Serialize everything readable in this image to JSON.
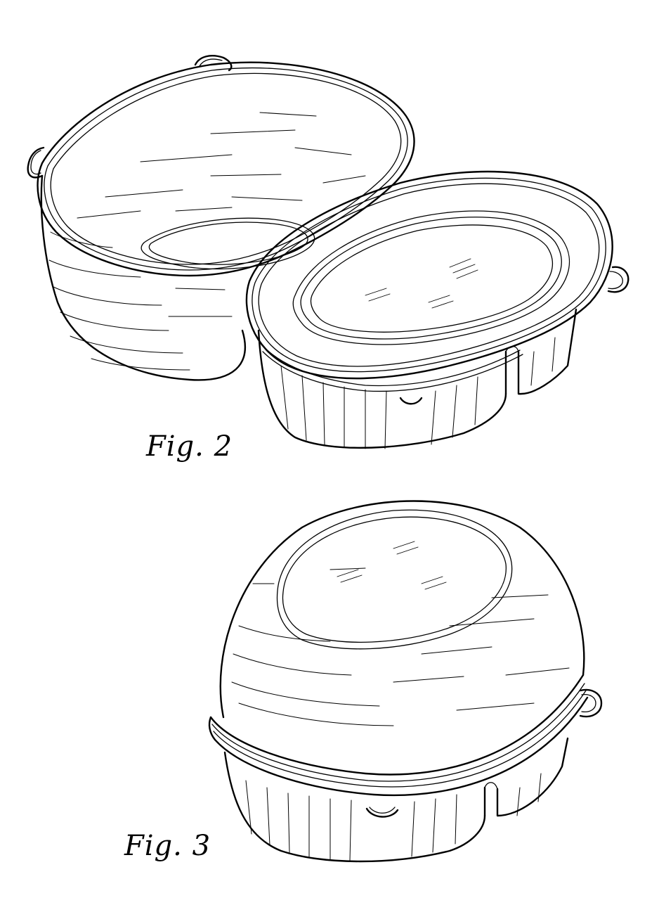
{
  "sheet": {
    "background": "#ffffff",
    "ink": "#000000"
  },
  "figures": [
    {
      "caption": "Fig. 2"
    },
    {
      "caption": "Fig. 3"
    }
  ]
}
